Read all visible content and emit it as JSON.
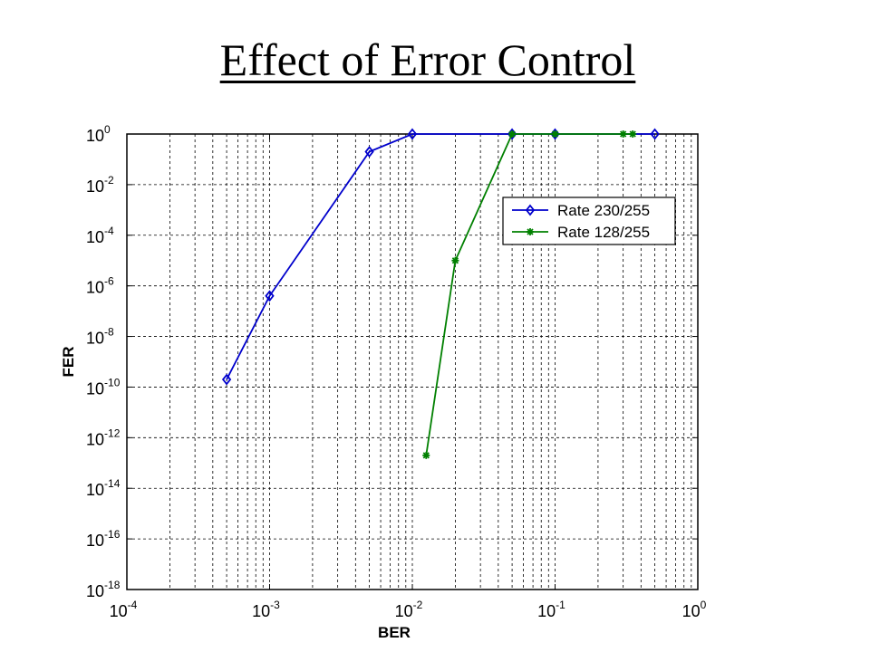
{
  "slide": {
    "title": "Effect of Error Control"
  },
  "chart_data": {
    "type": "line",
    "title": "",
    "xlabel": "BER",
    "ylabel": "FER",
    "xscale": "log",
    "yscale": "log",
    "xlim": [
      0.0001,
      1
    ],
    "ylim": [
      1e-18,
      1
    ],
    "grid": true,
    "legend": "top-right",
    "x_ticks": [
      {
        "base": "10",
        "exp": "-4"
      },
      {
        "base": "10",
        "exp": "-3"
      },
      {
        "base": "10",
        "exp": "-2"
      },
      {
        "base": "10",
        "exp": "-1"
      },
      {
        "base": "10",
        "exp": "0"
      }
    ],
    "y_ticks": [
      {
        "base": "10",
        "exp": "0"
      },
      {
        "base": "10",
        "exp": "-2"
      },
      {
        "base": "10",
        "exp": "-4"
      },
      {
        "base": "10",
        "exp": "-6"
      },
      {
        "base": "10",
        "exp": "-8"
      },
      {
        "base": "10",
        "exp": "-10"
      },
      {
        "base": "10",
        "exp": "-12"
      },
      {
        "base": "10",
        "exp": "-14"
      },
      {
        "base": "10",
        "exp": "-16"
      },
      {
        "base": "10",
        "exp": "-18"
      }
    ],
    "series": [
      {
        "name": "Rate 230/255",
        "color": "#0000cc",
        "marker": "diamond",
        "x": [
          0.0005,
          0.001,
          0.005,
          0.01,
          0.05,
          0.1,
          0.5
        ],
        "y": [
          2e-10,
          4e-07,
          0.2,
          1,
          1,
          1,
          1
        ]
      },
      {
        "name": "Rate 128/255",
        "color": "#008000",
        "marker": "star",
        "x": [
          0.0125,
          0.02,
          0.05,
          0.1,
          0.3,
          0.35
        ],
        "y": [
          2e-13,
          1e-05,
          1,
          1,
          1,
          1
        ]
      }
    ]
  }
}
